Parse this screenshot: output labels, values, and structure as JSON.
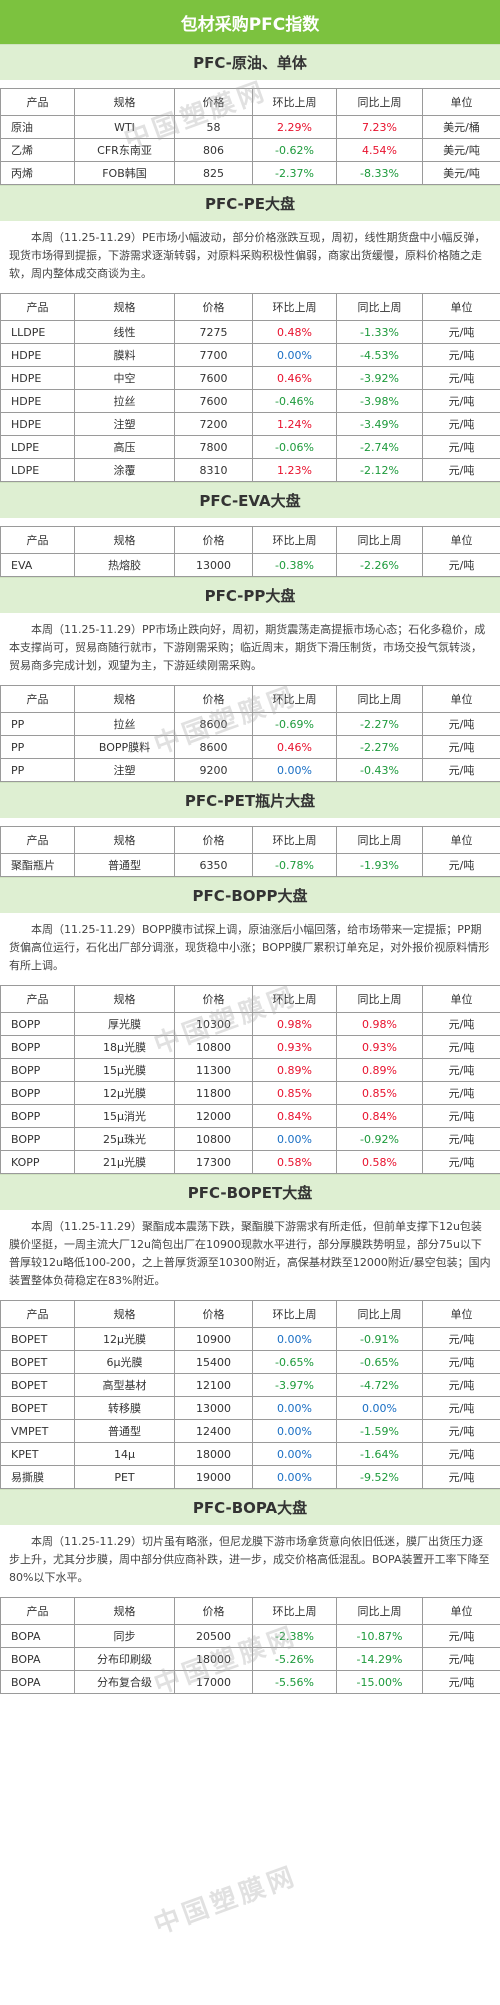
{
  "title": "包材采购PFC指数",
  "headers": [
    "产品",
    "规格",
    "价格",
    "环比上周",
    "同比上周",
    "单位"
  ],
  "watermark": "中国塑膜网",
  "sections": [
    {
      "title": "PFC-原油、单体",
      "para": "",
      "rows": [
        [
          "原油",
          "WTI",
          "58",
          "2.29%",
          "7.23%",
          "美元/桶"
        ],
        [
          "乙烯",
          "CFR东南亚",
          "806",
          "-0.62%",
          "4.54%",
          "美元/吨"
        ],
        [
          "丙烯",
          "FOB韩国",
          "825",
          "-2.37%",
          "-8.33%",
          "美元/吨"
        ]
      ]
    },
    {
      "title": "PFC-PE大盘",
      "para": "本周（11.25-11.29）PE市场小幅波动，部分价格涨跌互现，周初，线性期货盘中小幅反弹，现货市场得到提振，下游需求逐渐转弱，对原料采购积极性偏弱，商家出货缓慢，原料价格随之走软，周内整体成交商谈为主。",
      "rows": [
        [
          "LLDPE",
          "线性",
          "7275",
          "0.48%",
          "-1.33%",
          "元/吨"
        ],
        [
          "HDPE",
          "膜料",
          "7700",
          "0.00%",
          "-4.53%",
          "元/吨"
        ],
        [
          "HDPE",
          "中空",
          "7600",
          "0.46%",
          "-3.92%",
          "元/吨"
        ],
        [
          "HDPE",
          "拉丝",
          "7600",
          "-0.46%",
          "-3.98%",
          "元/吨"
        ],
        [
          "HDPE",
          "注塑",
          "7200",
          "1.24%",
          "-3.49%",
          "元/吨"
        ],
        [
          "LDPE",
          "高压",
          "7800",
          "-0.06%",
          "-2.74%",
          "元/吨"
        ],
        [
          "LDPE",
          "涂覆",
          "8310",
          "1.23%",
          "-2.12%",
          "元/吨"
        ]
      ]
    },
    {
      "title": "PFC-EVA大盘",
      "para": "",
      "rows": [
        [
          "EVA",
          "热熔胶",
          "13000",
          "-0.38%",
          "-2.26%",
          "元/吨"
        ]
      ]
    },
    {
      "title": "PFC-PP大盘",
      "para": "本周（11.25-11.29）PP市场止跌向好，周初，期货震荡走高提振市场心态；石化多稳价，成本支撑尚可，贸易商随行就市，下游刚需采购；临近周末，期货下滑压制货，市场交投气氛转淡，贸易商多完成计划，观望为主，下游延续刚需采购。",
      "rows": [
        [
          "PP",
          "拉丝",
          "8600",
          "-0.69%",
          "-2.27%",
          "元/吨"
        ],
        [
          "PP",
          "BOPP膜料",
          "8600",
          "0.46%",
          "-2.27%",
          "元/吨"
        ],
        [
          "PP",
          "注塑",
          "9200",
          "0.00%",
          "-0.43%",
          "元/吨"
        ]
      ]
    },
    {
      "title": "PFC-PET瓶片大盘",
      "para": "",
      "rows": [
        [
          "聚酯瓶片",
          "普通型",
          "6350",
          "-0.78%",
          "-1.93%",
          "元/吨"
        ]
      ]
    },
    {
      "title": "PFC-BOPP大盘",
      "para": "本周（11.25-11.29）BOPP膜市试探上调，原油涨后小幅回落，给市场带来一定提振；PP期货偏高位运行，石化出厂部分调涨，现货稳中小涨；BOPP膜厂累积订单充足，对外报价视原料情形有所上调。",
      "rows": [
        [
          "BOPP",
          "厚光膜",
          "10300",
          "0.98%",
          "0.98%",
          "元/吨"
        ],
        [
          "BOPP",
          "18μ光膜",
          "10800",
          "0.93%",
          "0.93%",
          "元/吨"
        ],
        [
          "BOPP",
          "15μ光膜",
          "11300",
          "0.89%",
          "0.89%",
          "元/吨"
        ],
        [
          "BOPP",
          "12μ光膜",
          "11800",
          "0.85%",
          "0.85%",
          "元/吨"
        ],
        [
          "BOPP",
          "15μ消光",
          "12000",
          "0.84%",
          "0.84%",
          "元/吨"
        ],
        [
          "BOPP",
          "25μ珠光",
          "10800",
          "0.00%",
          "-0.92%",
          "元/吨"
        ],
        [
          "KOPP",
          "21μ光膜",
          "17300",
          "0.58%",
          "0.58%",
          "元/吨"
        ]
      ]
    },
    {
      "title": "PFC-BOPET大盘",
      "para": "本周（11.25-11.29）聚酯成本震荡下跌，聚酯膜下游需求有所走低，但前单支撑下12u包装膜价坚挺，一周主流大厂12u简包出厂在10900现款水平进行，部分厚膜跌势明显，部分75u以下普厚较12u略低100-200，之上普厚货源至10300附近，高保基材跌至12000附近/暴空包装；国内装置整体负荷稳定在83%附近。",
      "rows": [
        [
          "BOPET",
          "12μ光膜",
          "10900",
          "0.00%",
          "-0.91%",
          "元/吨"
        ],
        [
          "BOPET",
          "6μ光膜",
          "15400",
          "-0.65%",
          "-0.65%",
          "元/吨"
        ],
        [
          "BOPET",
          "高型基材",
          "12100",
          "-3.97%",
          "-4.72%",
          "元/吨"
        ],
        [
          "BOPET",
          "转移膜",
          "13000",
          "0.00%",
          "0.00%",
          "元/吨"
        ],
        [
          "VMPET",
          "普通型",
          "12400",
          "0.00%",
          "-1.59%",
          "元/吨"
        ],
        [
          "KPET",
          "14μ",
          "18000",
          "0.00%",
          "-1.64%",
          "元/吨"
        ],
        [
          "易撕膜",
          "PET",
          "19000",
          "0.00%",
          "-9.52%",
          "元/吨"
        ]
      ]
    },
    {
      "title": "PFC-BOPA大盘",
      "para": "本周（11.25-11.29）切片虽有略涨，但尼龙膜下游市场拿货意向依旧低迷，膜厂出货压力逐步上升，尤其分步膜，周中部分供应商补跌，进一步，成交价格高低混乱。BOPA装置开工率下降至80%以下水平。",
      "rows": [
        [
          "BOPA",
          "同步",
          "20500",
          "-2.38%",
          "-10.87%",
          "元/吨"
        ],
        [
          "BOPA",
          "分布印刷级",
          "18000",
          "-5.26%",
          "-14.29%",
          "元/吨"
        ],
        [
          "BOPA",
          "分布复合级",
          "17000",
          "-5.56%",
          "-15.00%",
          "元/吨"
        ]
      ]
    }
  ]
}
